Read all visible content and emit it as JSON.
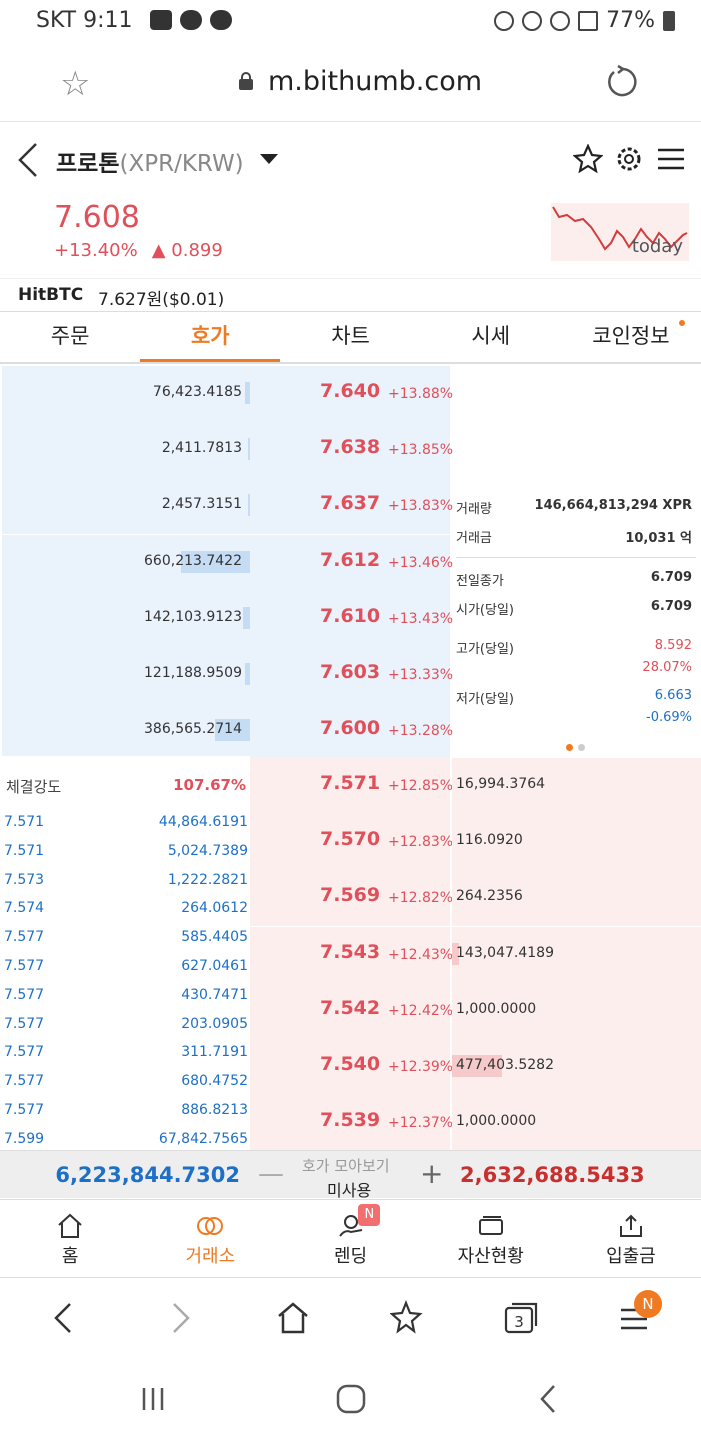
{
  "status": {
    "carrier_time": "SKT 9:11",
    "battery": "77%"
  },
  "browser_url": {
    "url": "m.bithumb.com"
  },
  "market": {
    "name": "프로톤",
    "pair": "(XPR/KRW)",
    "price": "7.608",
    "change_pct": "+13.40%",
    "change_abs": "▲ 0.899",
    "sparkline_label": "today",
    "hitbtc_label": "HitBTC",
    "hitbtc_value": "7.627원($0.01)"
  },
  "tabs": [
    "주문",
    "호가",
    "차트",
    "시세",
    "코인정보"
  ],
  "asks": [
    {
      "qty": "76,423.4185",
      "price": "7.640",
      "pct": "+13.88%",
      "fill": 0.02
    },
    {
      "qty": "2,411.7813",
      "price": "7.638",
      "pct": "+13.85%",
      "fill": 0.0
    },
    {
      "qty": "2,457.3151",
      "price": "7.637",
      "pct": "+13.83%",
      "fill": 0.0
    },
    {
      "qty": "660,213.7422",
      "price": "7.612",
      "pct": "+13.46%",
      "fill": 0.28
    },
    {
      "qty": "142,103.9123",
      "price": "7.610",
      "pct": "+13.43%",
      "fill": 0.03
    },
    {
      "qty": "121,188.9509",
      "price": "7.603",
      "pct": "+13.33%",
      "fill": 0.02
    },
    {
      "qty": "386,565.2714",
      "price": "7.600",
      "pct": "+13.28%",
      "fill": 0.14
    }
  ],
  "bids": [
    {
      "qty": "16,994.3764",
      "price": "7.571",
      "pct": "+12.85%",
      "fill": 0.0
    },
    {
      "qty": "116.0920",
      "price": "7.570",
      "pct": "+12.83%",
      "fill": 0.0
    },
    {
      "qty": "264.2356",
      "price": "7.569",
      "pct": "+12.82%",
      "fill": 0.0
    },
    {
      "qty": "143,047.4189",
      "price": "7.543",
      "pct": "+12.43%",
      "fill": 0.03
    },
    {
      "qty": "1,000.0000",
      "price": "7.542",
      "pct": "+12.42%",
      "fill": 0.0
    },
    {
      "qty": "477,403.5282",
      "price": "7.540",
      "pct": "+12.39%",
      "fill": 0.2
    },
    {
      "qty": "1,000.0000",
      "price": "7.539",
      "pct": "+12.37%",
      "fill": 0.0
    }
  ],
  "stats": {
    "volume_label": "거래량",
    "volume_value": "146,664,813,294 XPR",
    "amount_label": "거래금",
    "amount_value": "10,031 억",
    "prev_close_label": "전일종가",
    "prev_close_value": "6.709",
    "open_label": "시가(당일)",
    "open_value": "6.709",
    "high_label": "고가(당일)",
    "high_value": "8.592",
    "high_pct": "28.07%",
    "low_label": "저가(당일)",
    "low_value": "6.663",
    "low_pct": "-0.69%"
  },
  "strength": {
    "label": "체결강도",
    "value": "107.67%"
  },
  "trades": [
    {
      "price": "7.571",
      "qty": "44,864.6191"
    },
    {
      "price": "7.571",
      "qty": "5,024.7389"
    },
    {
      "price": "7.573",
      "qty": "1,222.2821"
    },
    {
      "price": "7.574",
      "qty": "264.0612"
    },
    {
      "price": "7.577",
      "qty": "585.4405"
    },
    {
      "price": "7.577",
      "qty": "627.0461"
    },
    {
      "price": "7.577",
      "qty": "430.7471"
    },
    {
      "price": "7.577",
      "qty": "203.0905"
    },
    {
      "price": "7.577",
      "qty": "311.7191"
    },
    {
      "price": "7.577",
      "qty": "680.4752"
    },
    {
      "price": "7.577",
      "qty": "886.8213"
    },
    {
      "price": "7.599",
      "qty": "67,842.7565"
    }
  ],
  "totals": {
    "ask_total": "6,223,844.7302",
    "bid_total": "2,632,688.5433",
    "collect_label": "호가 모아보기",
    "collect_state": "미사용"
  },
  "bottom_nav": [
    "홈",
    "거래소",
    "렌딩",
    "자산현황",
    "입출금"
  ],
  "badges": {
    "lending": "N",
    "menu": "N",
    "tabs_count": "3"
  },
  "colors": {
    "accent": "#f07a22",
    "up": "#e0505a",
    "down": "#1e6fc6"
  }
}
